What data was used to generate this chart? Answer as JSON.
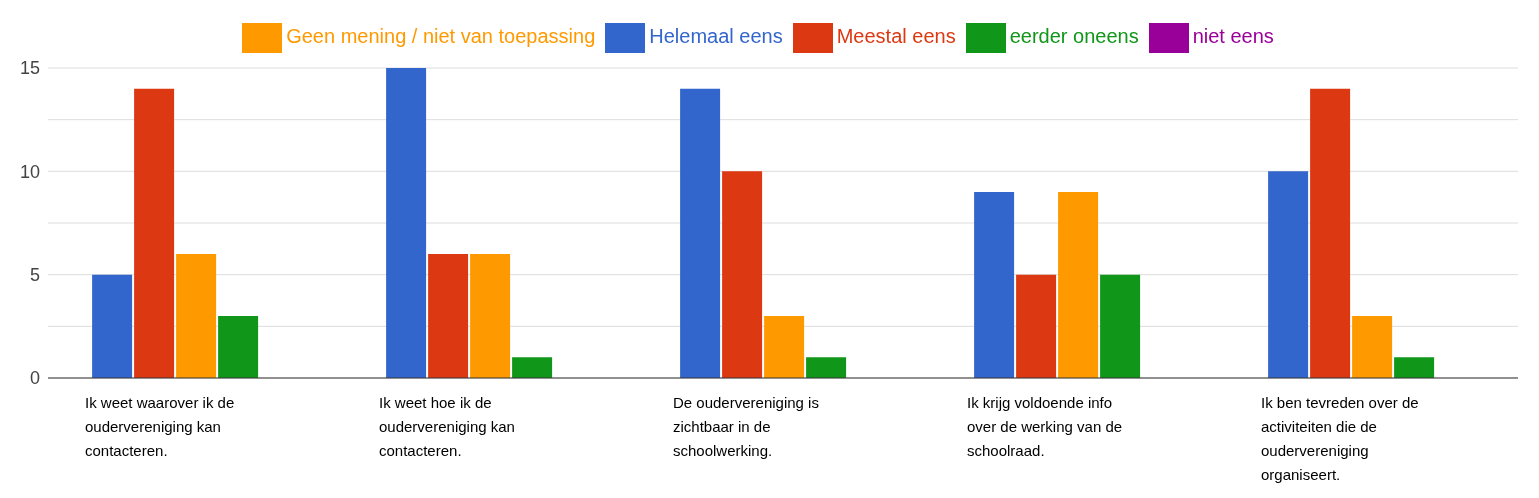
{
  "chart_data": {
    "type": "bar",
    "categories": [
      "Ik weet waarover ik de oudervereniging kan contacteren.",
      "Ik weet hoe ik de oudervereniging kan contacteren.",
      "De oudervereniging is zichtbaar in de schoolwerking.",
      "Ik krijg voldoende info over de werking van de schoolraad.",
      "Ik ben tevreden over de activiteiten die de oudervereniging organiseert."
    ],
    "series": [
      {
        "name": "Helemaal eens",
        "color": "#3366cc",
        "values": [
          5,
          15,
          14,
          9,
          10
        ]
      },
      {
        "name": "Meestal eens",
        "color": "#dc3912",
        "values": [
          14,
          6,
          10,
          5,
          14
        ]
      },
      {
        "name": "Geen mening / niet van toepassing",
        "color": "#ff9900",
        "values": [
          6,
          6,
          3,
          9,
          3
        ]
      },
      {
        "name": "eerder oneens",
        "color": "#109618",
        "values": [
          3,
          1,
          1,
          5,
          1
        ]
      },
      {
        "name": "niet eens",
        "color": "#990099",
        "values": [
          0,
          0,
          0,
          0,
          0
        ]
      }
    ],
    "ylim": [
      0,
      15
    ],
    "yticks": [
      0,
      {
        "value": 2.5,
        "label": null
      },
      5,
      {
        "value": 7.5,
        "label": null
      },
      10,
      {
        "value": 12.5,
        "label": null
      },
      15
    ],
    "grid": "y",
    "legend": "top"
  }
}
